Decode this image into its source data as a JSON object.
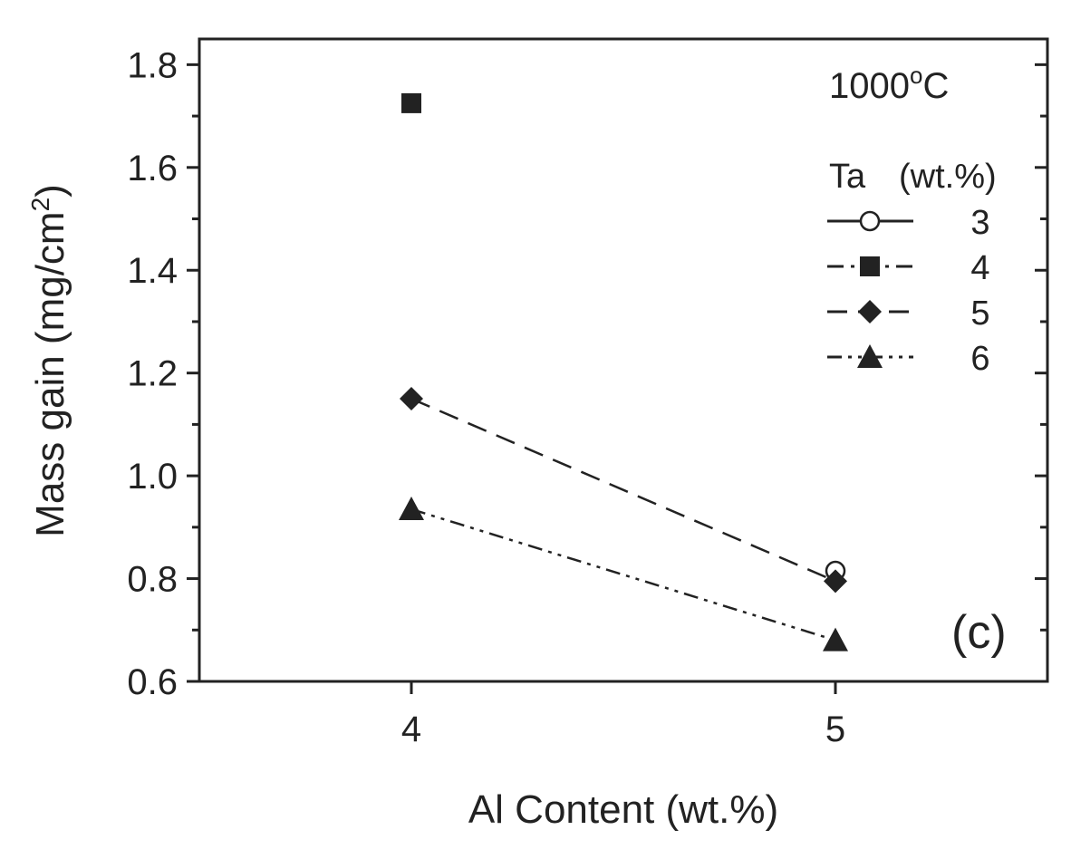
{
  "chart_data": {
    "type": "scatter",
    "title": "",
    "xlabel": "Al Content (wt.%)",
    "ylabel": {
      "main": "Mass gain (mg/cm",
      "sup": "2",
      "close": ")"
    },
    "xlim": [
      3.5,
      5.5
    ],
    "ylim": [
      0.6,
      1.85
    ],
    "x_ticks": [
      4,
      5
    ],
    "x_tick_labels": [
      "4",
      "5"
    ],
    "y_ticks": [
      0.6,
      0.8,
      1.0,
      1.2,
      1.4,
      1.6,
      1.8
    ],
    "y_tick_labels": [
      "0.6",
      "0.8",
      "1.0",
      "1.2",
      "1.4",
      "1.6",
      "1.8"
    ],
    "grid": false,
    "legend_placement": "top-right",
    "temperature": {
      "main": "1000",
      "sup": "o",
      "unit": "C"
    },
    "legend_title": {
      "a": "Ta",
      "b": "(wt.%)"
    },
    "panel_label": "(c)",
    "colors": {
      "ink": "#222222",
      "background": "#ffffff",
      "open_fill": "#ffffff"
    },
    "series": [
      {
        "name": "3",
        "marker": "circle-open",
        "dash": "solid",
        "points": [
          {
            "x": 5,
            "y": 0.815
          }
        ]
      },
      {
        "name": "4",
        "marker": "square",
        "dash": "dash-dot",
        "points": [
          {
            "x": 4,
            "y": 1.725
          }
        ]
      },
      {
        "name": "5",
        "marker": "diamond",
        "dash": "dashed",
        "points": [
          {
            "x": 4,
            "y": 1.15
          },
          {
            "x": 5,
            "y": 0.795
          }
        ]
      },
      {
        "name": "6",
        "marker": "triangle",
        "dash": "dash-dot-dot",
        "points": [
          {
            "x": 4,
            "y": 0.935
          },
          {
            "x": 5,
            "y": 0.68
          }
        ]
      }
    ]
  }
}
